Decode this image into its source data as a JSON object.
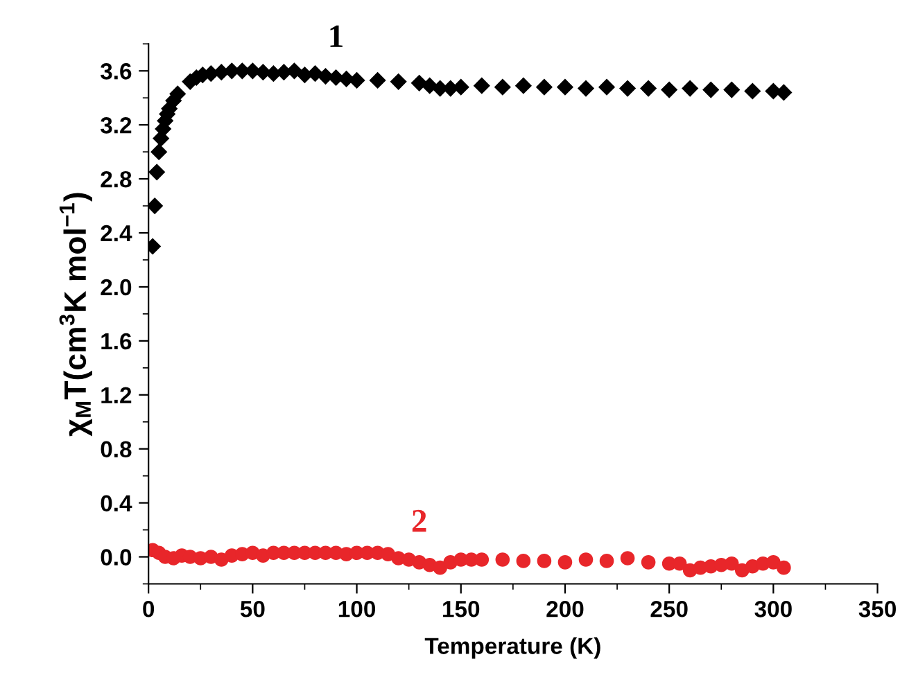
{
  "chart_data": {
    "type": "scatter",
    "xlabel": "Temperature (K)",
    "ylabel": "χ$_{M}$T(cm$^{3}$K mol$^{−1}$)",
    "xlim": [
      0,
      350
    ],
    "xticks": [
      0,
      50,
      100,
      150,
      200,
      250,
      300,
      350
    ],
    "ylim": [
      -0.2,
      3.8
    ],
    "yticks": [
      {
        "value": 0,
        "label": "0.0"
      },
      0.4,
      0.8,
      1.2,
      1.6,
      {
        "value": 2,
        "label": "2.0"
      },
      2.4,
      2.8,
      3.2,
      3.6
    ],
    "grid": false,
    "legend": false,
    "series": [
      {
        "name": "1",
        "color": "#000000",
        "marker": "diamond",
        "x": [
          2,
          3,
          4,
          5,
          6,
          7,
          8,
          9,
          10,
          12,
          14,
          20,
          23,
          26,
          30,
          35,
          40,
          45,
          50,
          55,
          60,
          65,
          70,
          75,
          80,
          85,
          90,
          95,
          100,
          110,
          120,
          130,
          135,
          140,
          145,
          150,
          160,
          170,
          180,
          190,
          200,
          210,
          220,
          230,
          240,
          250,
          260,
          270,
          280,
          290,
          300,
          305
        ],
        "values": [
          2.3,
          2.6,
          2.85,
          3.0,
          3.1,
          3.17,
          3.23,
          3.28,
          3.32,
          3.38,
          3.43,
          3.52,
          3.55,
          3.57,
          3.58,
          3.59,
          3.6,
          3.6,
          3.6,
          3.59,
          3.58,
          3.59,
          3.6,
          3.57,
          3.58,
          3.56,
          3.55,
          3.54,
          3.53,
          3.53,
          3.52,
          3.51,
          3.49,
          3.47,
          3.47,
          3.48,
          3.49,
          3.48,
          3.49,
          3.48,
          3.48,
          3.47,
          3.48,
          3.47,
          3.47,
          3.46,
          3.47,
          3.46,
          3.46,
          3.45,
          3.45,
          3.44
        ]
      },
      {
        "name": "2",
        "color": "#e8262a",
        "marker": "circle",
        "x": [
          2,
          5,
          8,
          12,
          16,
          20,
          25,
          30,
          35,
          40,
          45,
          50,
          55,
          60,
          65,
          70,
          75,
          80,
          85,
          90,
          95,
          100,
          105,
          110,
          115,
          120,
          125,
          130,
          135,
          140,
          145,
          150,
          155,
          160,
          170,
          180,
          190,
          200,
          210,
          220,
          230,
          240,
          250,
          255,
          260,
          265,
          270,
          275,
          280,
          285,
          290,
          295,
          300,
          305
        ],
        "values": [
          0.05,
          0.03,
          0.0,
          -0.01,
          0.01,
          0.0,
          -0.01,
          0.0,
          -0.02,
          0.01,
          0.02,
          0.03,
          0.01,
          0.03,
          0.03,
          0.03,
          0.03,
          0.03,
          0.03,
          0.03,
          0.02,
          0.03,
          0.03,
          0.03,
          0.02,
          -0.01,
          -0.02,
          -0.04,
          -0.06,
          -0.08,
          -0.04,
          -0.02,
          -0.02,
          -0.02,
          -0.02,
          -0.03,
          -0.03,
          -0.04,
          -0.02,
          -0.03,
          -0.01,
          -0.04,
          -0.05,
          -0.05,
          -0.1,
          -0.08,
          -0.07,
          -0.06,
          -0.05,
          -0.1,
          -0.07,
          -0.05,
          -0.04,
          -0.08
        ]
      }
    ]
  }
}
